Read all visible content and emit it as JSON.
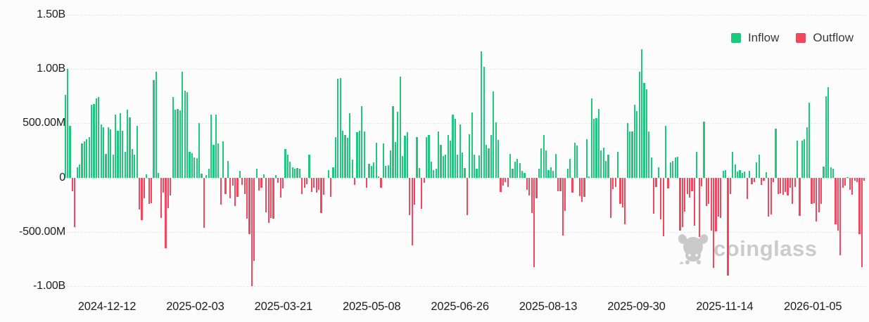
{
  "chart_data": {
    "type": "bar",
    "title": "",
    "legend": [
      {
        "label": "Inflow",
        "color": "#1EC87D"
      },
      {
        "label": "Outflow",
        "color": "#F4465D"
      }
    ],
    "y_axis": {
      "ticks": [
        {
          "label": "1.50B",
          "value_millions": 1500
        },
        {
          "label": "1.00B",
          "value_millions": 1000
        },
        {
          "label": "500.00M",
          "value_millions": 500
        },
        {
          "label": "0",
          "value_millions": 0
        },
        {
          "label": "-500.00M",
          "value_millions": -500
        },
        {
          "label": "-1.00B",
          "value_millions": -1000
        }
      ]
    },
    "x_axis": {
      "tick_labels": [
        "2024-12-12",
        "2025-02-03",
        "2025-03-21",
        "2025-05-08",
        "2025-06-26",
        "2025-08-13",
        "2025-09-30",
        "2025-11-14",
        "2026-01-05"
      ]
    },
    "ylim_millions": [
      -1500,
      1500
    ],
    "grid": "dashed-horizontal",
    "legend_position": "top-right",
    "values_millions": [
      761,
      1000,
      477,
      -122,
      -453,
      92,
      120,
      316,
      333,
      355,
      370,
      669,
      680,
      727,
      739,
      487,
      466,
      220,
      462,
      444,
      214,
      583,
      434,
      594,
      434,
      235,
      626,
      556,
      263,
      209,
      477,
      -293,
      -389,
      -192,
      30,
      -239,
      -235,
      898,
      975,
      43,
      -368,
      -137,
      -650,
      -278,
      -165,
      739,
      626,
      632,
      620,
      975,
      803,
      790,
      235,
      226,
      184,
      177,
      504,
      40,
      -464,
      26,
      85,
      577,
      299,
      583,
      312,
      -250,
      333,
      -154,
      156,
      -192,
      -73,
      -261,
      -175,
      64,
      -64,
      -150,
      -378,
      -521,
      -1000,
      -763,
      85,
      -120,
      -90,
      30,
      -320,
      -415,
      -368,
      -378,
      21,
      -50,
      -180,
      -100,
      263,
      210,
      145,
      95,
      81,
      90,
      85,
      -150,
      -90,
      -60,
      210,
      -130,
      -90,
      -140,
      -110,
      -325,
      -155,
      0,
      70,
      -175,
      98,
      370,
      911,
      919,
      430,
      395,
      365,
      592,
      168,
      -65,
      420,
      430,
      660,
      425,
      -90,
      128,
      110,
      140,
      320,
      10,
      -95,
      318,
      110,
      115,
      250,
      660,
      325,
      608,
      930,
      200,
      385,
      420,
      -345,
      -620,
      -250,
      370,
      90,
      -286,
      -47,
      376,
      391,
      150,
      70,
      81,
      423,
      301,
      199,
      209,
      391,
      338,
      583,
      540,
      214,
      491,
      231,
      88,
      -346,
      402,
      598,
      214,
      81,
      203,
      1160,
      1021,
      299,
      269,
      395,
      793,
      509,
      348,
      -132,
      -73,
      -43,
      -85,
      220,
      85,
      150,
      171,
      135,
      64,
      43,
      -111,
      -165,
      -325,
      -821,
      -192,
      81,
      269,
      391,
      248,
      70,
      92,
      64,
      220,
      -128,
      -122,
      -534,
      -308,
      81,
      171,
      -137,
      320,
      295,
      -171,
      -222,
      -175,
      355,
      13,
      729,
      540,
      547,
      632,
      252,
      278,
      156,
      214,
      -372,
      -107,
      -85,
      235,
      -244,
      -271,
      -427,
      504,
      423,
      427,
      669,
      615,
      975,
      1182,
      872,
      812,
      427,
      188,
      -329,
      -85,
      92,
      -385,
      -539,
      477,
      -100,
      141,
      156,
      188,
      192,
      -485,
      -453,
      -314,
      -154,
      -186,
      -128,
      -442,
      235,
      -543,
      -79,
      513,
      -261,
      -239,
      -485,
      -827,
      -491,
      -357,
      -372,
      64,
      70,
      -902,
      -154,
      235,
      120,
      56,
      70,
      43,
      56,
      -197,
      64,
      -58,
      -43,
      141,
      214,
      -64,
      -30,
      49,
      -357,
      -336,
      -43,
      449,
      -150,
      -143,
      -158,
      -132,
      -165,
      -94,
      -244,
      -85,
      342,
      -350,
      338,
      355,
      462,
      690,
      -244,
      -235,
      -406,
      -320,
      -244,
      103,
      748,
      835,
      98,
      81,
      -427,
      -485,
      -714,
      -94,
      -73,
      6,
      -115,
      -158,
      -30,
      -43,
      -521,
      -821,
      -30
    ]
  },
  "watermark": {
    "text": "coinglass",
    "icon": "coinglass-bull-icon"
  },
  "colors": {
    "background": "#fcfcfc",
    "grid": "#e7e7e7",
    "axis_text": "#1d1d1d",
    "inflow": "#1EC87D",
    "outflow": "#F4465D",
    "watermark": "#cbcbcb"
  }
}
